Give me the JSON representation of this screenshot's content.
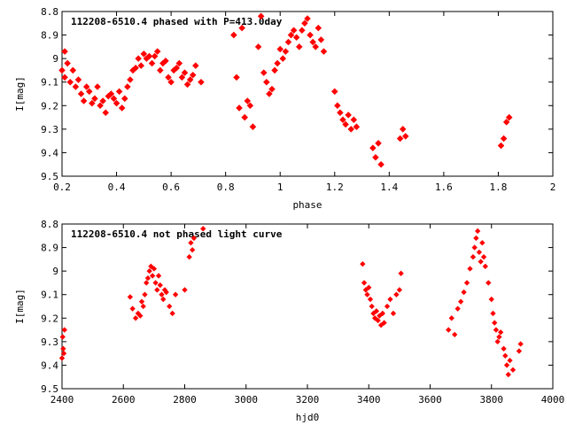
{
  "chart_data": [
    {
      "type": "scatter",
      "title": "112208-6510.4 phased with P=413.0day",
      "xlabel": "phase",
      "ylabel": "I[mag]",
      "xlim": [
        0.2,
        2
      ],
      "ylim": [
        8.8,
        9.5
      ],
      "y_inverted": true,
      "xticks": [
        "0.2",
        "0.4",
        "0.6",
        "0.8",
        "1",
        "1.2",
        "1.4",
        "1.6",
        "1.8",
        "2"
      ],
      "yticks": [
        "8.8",
        "8.9",
        "9",
        "9.1",
        "9.2",
        "9.3",
        "9.4",
        "9.5"
      ],
      "marker_color": "#ff0000",
      "series": [
        {
          "x": [
            0.2,
            0.21,
            0.22,
            0.21,
            0.23,
            0.24,
            0.25,
            0.26,
            0.27,
            0.28,
            0.29,
            0.3,
            0.31,
            0.32,
            0.33,
            0.34,
            0.35,
            0.36,
            0.37,
            0.38,
            0.39,
            0.4,
            0.41,
            0.42,
            0.43,
            0.44,
            0.45,
            0.46,
            0.47,
            0.48,
            0.49,
            0.5,
            0.51,
            0.52,
            0.53,
            0.54,
            0.55,
            0.56,
            0.57,
            0.58,
            0.59,
            0.6,
            0.61,
            0.62,
            0.63,
            0.64,
            0.65,
            0.66,
            0.67,
            0.68,
            0.69,
            0.71,
            0.83,
            0.84,
            0.85,
            0.86,
            0.87,
            0.88,
            0.89,
            0.9,
            0.92,
            0.93,
            0.94,
            0.95,
            0.96,
            0.97,
            0.98,
            0.99,
            1.0,
            1.01,
            1.02,
            1.03,
            1.04,
            1.05,
            1.06,
            1.07,
            1.08,
            1.09,
            1.1,
            1.11,
            1.12,
            1.13,
            1.14,
            1.15,
            1.16,
            1.2,
            1.21,
            1.22,
            1.23,
            1.24,
            1.25,
            1.26,
            1.27,
            1.28,
            1.34,
            1.35,
            1.36,
            1.37,
            1.44,
            1.45,
            1.46,
            1.81,
            1.82,
            1.83,
            1.84
          ],
          "y": [
            9.05,
            8.97,
            9.02,
            9.08,
            9.1,
            9.05,
            9.12,
            9.09,
            9.15,
            9.18,
            9.12,
            9.14,
            9.19,
            9.17,
            9.12,
            9.2,
            9.18,
            9.23,
            9.16,
            9.15,
            9.17,
            9.19,
            9.14,
            9.21,
            9.17,
            9.12,
            9.09,
            9.05,
            9.04,
            9.0,
            9.03,
            8.98,
            9.0,
            8.99,
            9.02,
            8.99,
            8.97,
            9.05,
            9.02,
            9.01,
            9.08,
            9.1,
            9.05,
            9.04,
            9.02,
            9.08,
            9.06,
            9.11,
            9.09,
            9.07,
            9.03,
            9.1,
            8.9,
            9.08,
            9.21,
            8.87,
            9.25,
            9.18,
            9.2,
            9.29,
            8.95,
            8.82,
            9.06,
            9.1,
            9.15,
            9.13,
            9.05,
            9.02,
            8.96,
            9.0,
            8.97,
            8.93,
            8.9,
            8.88,
            8.91,
            8.95,
            8.88,
            8.85,
            8.83,
            8.9,
            8.93,
            8.95,
            8.87,
            8.92,
            8.97,
            9.14,
            9.2,
            9.23,
            9.26,
            9.28,
            9.24,
            9.3,
            9.26,
            9.29,
            9.38,
            9.42,
            9.36,
            9.45,
            9.34,
            9.3,
            9.33,
            9.37,
            9.34,
            9.27,
            9.25
          ]
        }
      ]
    },
    {
      "type": "scatter",
      "title": "112208-6510.4 not phased light curve",
      "xlabel": "hjd0",
      "ylabel": "I[mag]",
      "xlim": [
        2400,
        4000
      ],
      "ylim": [
        8.8,
        9.5
      ],
      "y_inverted": true,
      "xticks": [
        "2400",
        "2600",
        "2800",
        "3000",
        "3200",
        "3400",
        "3600",
        "3800",
        "4000"
      ],
      "yticks": [
        "8.8",
        "8.9",
        "9",
        "9.1",
        "9.2",
        "9.3",
        "9.4",
        "9.5"
      ],
      "marker_color": "#ff0000",
      "series": [
        {
          "x": [
            2400,
            2402,
            2404,
            2406,
            2408,
            2622,
            2630,
            2640,
            2648,
            2655,
            2660,
            2665,
            2670,
            2675,
            2680,
            2685,
            2690,
            2695,
            2700,
            2705,
            2710,
            2715,
            2720,
            2725,
            2730,
            2735,
            2740,
            2750,
            2760,
            2770,
            2800,
            2815,
            2820,
            2825,
            2830,
            2860,
            3380,
            3385,
            3390,
            3395,
            3400,
            3405,
            3410,
            3415,
            3420,
            3425,
            3430,
            3435,
            3440,
            3445,
            3450,
            3460,
            3470,
            3480,
            3490,
            3500,
            3505,
            3660,
            3670,
            3680,
            3690,
            3700,
            3710,
            3720,
            3730,
            3740,
            3745,
            3750,
            3755,
            3760,
            3765,
            3770,
            3775,
            3780,
            3790,
            3800,
            3805,
            3810,
            3815,
            3820,
            3825,
            3830,
            3840,
            3845,
            3850,
            3855,
            3860,
            3870,
            3890,
            3895
          ],
          "y": [
            9.37,
            9.28,
            9.33,
            9.35,
            9.25,
            9.11,
            9.16,
            9.2,
            9.18,
            9.19,
            9.13,
            9.15,
            9.1,
            9.05,
            9.03,
            9.0,
            8.98,
            9.02,
            8.99,
            9.05,
            9.08,
            9.02,
            9.06,
            9.1,
            9.12,
            9.08,
            9.09,
            9.15,
            9.18,
            9.1,
            9.08,
            8.94,
            8.88,
            8.91,
            8.86,
            8.82,
            8.97,
            9.05,
            9.08,
            9.1,
            9.07,
            9.12,
            9.15,
            9.18,
            9.2,
            9.17,
            9.21,
            9.19,
            9.23,
            9.18,
            9.22,
            9.15,
            9.12,
            9.18,
            9.1,
            9.08,
            9.01,
            9.25,
            9.2,
            9.27,
            9.16,
            9.13,
            9.09,
            9.05,
            8.99,
            8.94,
            8.9,
            8.86,
            8.83,
            8.92,
            8.96,
            8.88,
            8.94,
            8.98,
            9.05,
            9.12,
            9.18,
            9.22,
            9.25,
            9.3,
            9.28,
            9.26,
            9.33,
            9.36,
            9.4,
            9.44,
            9.38,
            9.42,
            9.34,
            9.31
          ]
        }
      ]
    }
  ]
}
